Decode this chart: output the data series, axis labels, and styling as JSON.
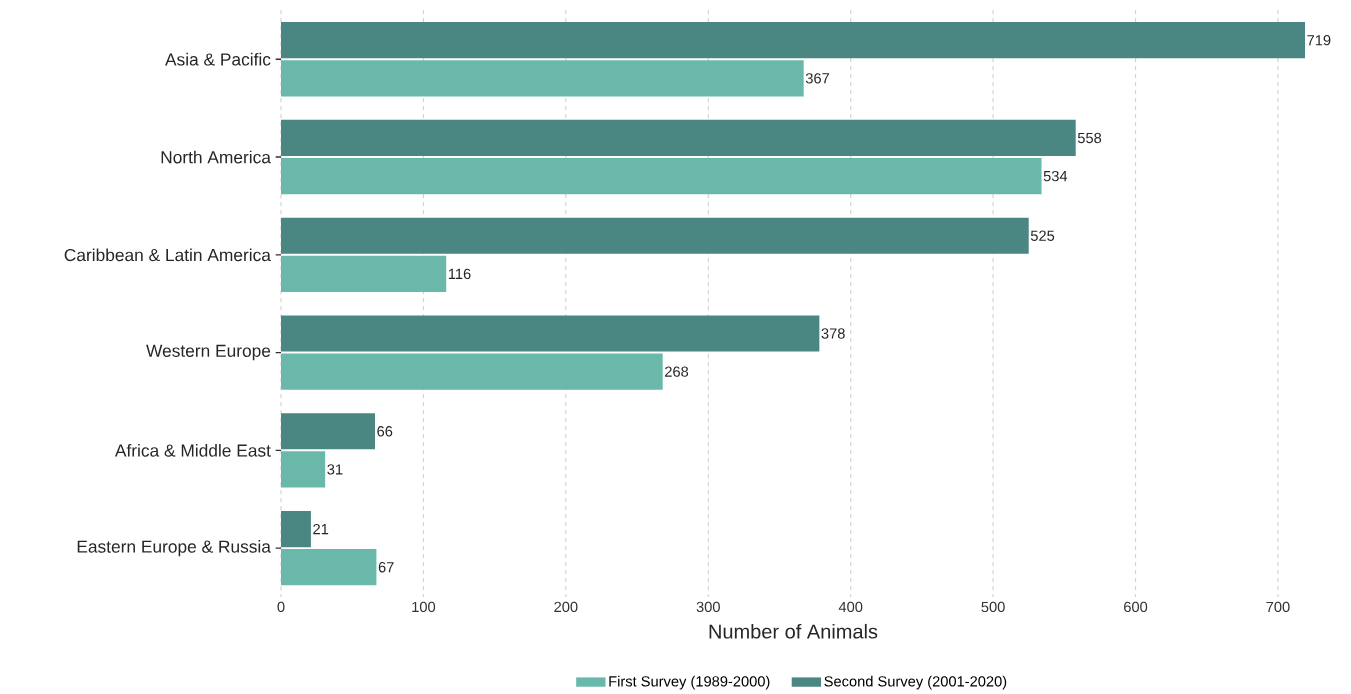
{
  "chart_data": {
    "type": "bar",
    "orientation": "horizontal",
    "xlabel": "Number of Animals",
    "categories": [
      "Asia & Pacific",
      "North America",
      "Caribbean & Latin America",
      "Western Europe",
      "Africa & Middle East",
      "Eastern Europe & Russia"
    ],
    "series": [
      {
        "name": "First Survey (1989-2000)",
        "color": "#6ab8aa",
        "values": [
          367,
          534,
          116,
          268,
          31,
          67
        ]
      },
      {
        "name": "Second Survey (2001-2020)",
        "color": "#4a8682",
        "values": [
          719,
          558,
          525,
          378,
          66,
          21
        ]
      }
    ],
    "xlim": [
      0,
      719
    ],
    "xticks": [
      0,
      100,
      200,
      300,
      400,
      500,
      600,
      700
    ],
    "grid": "x",
    "legend": "bottom",
    "data_labels": true
  }
}
